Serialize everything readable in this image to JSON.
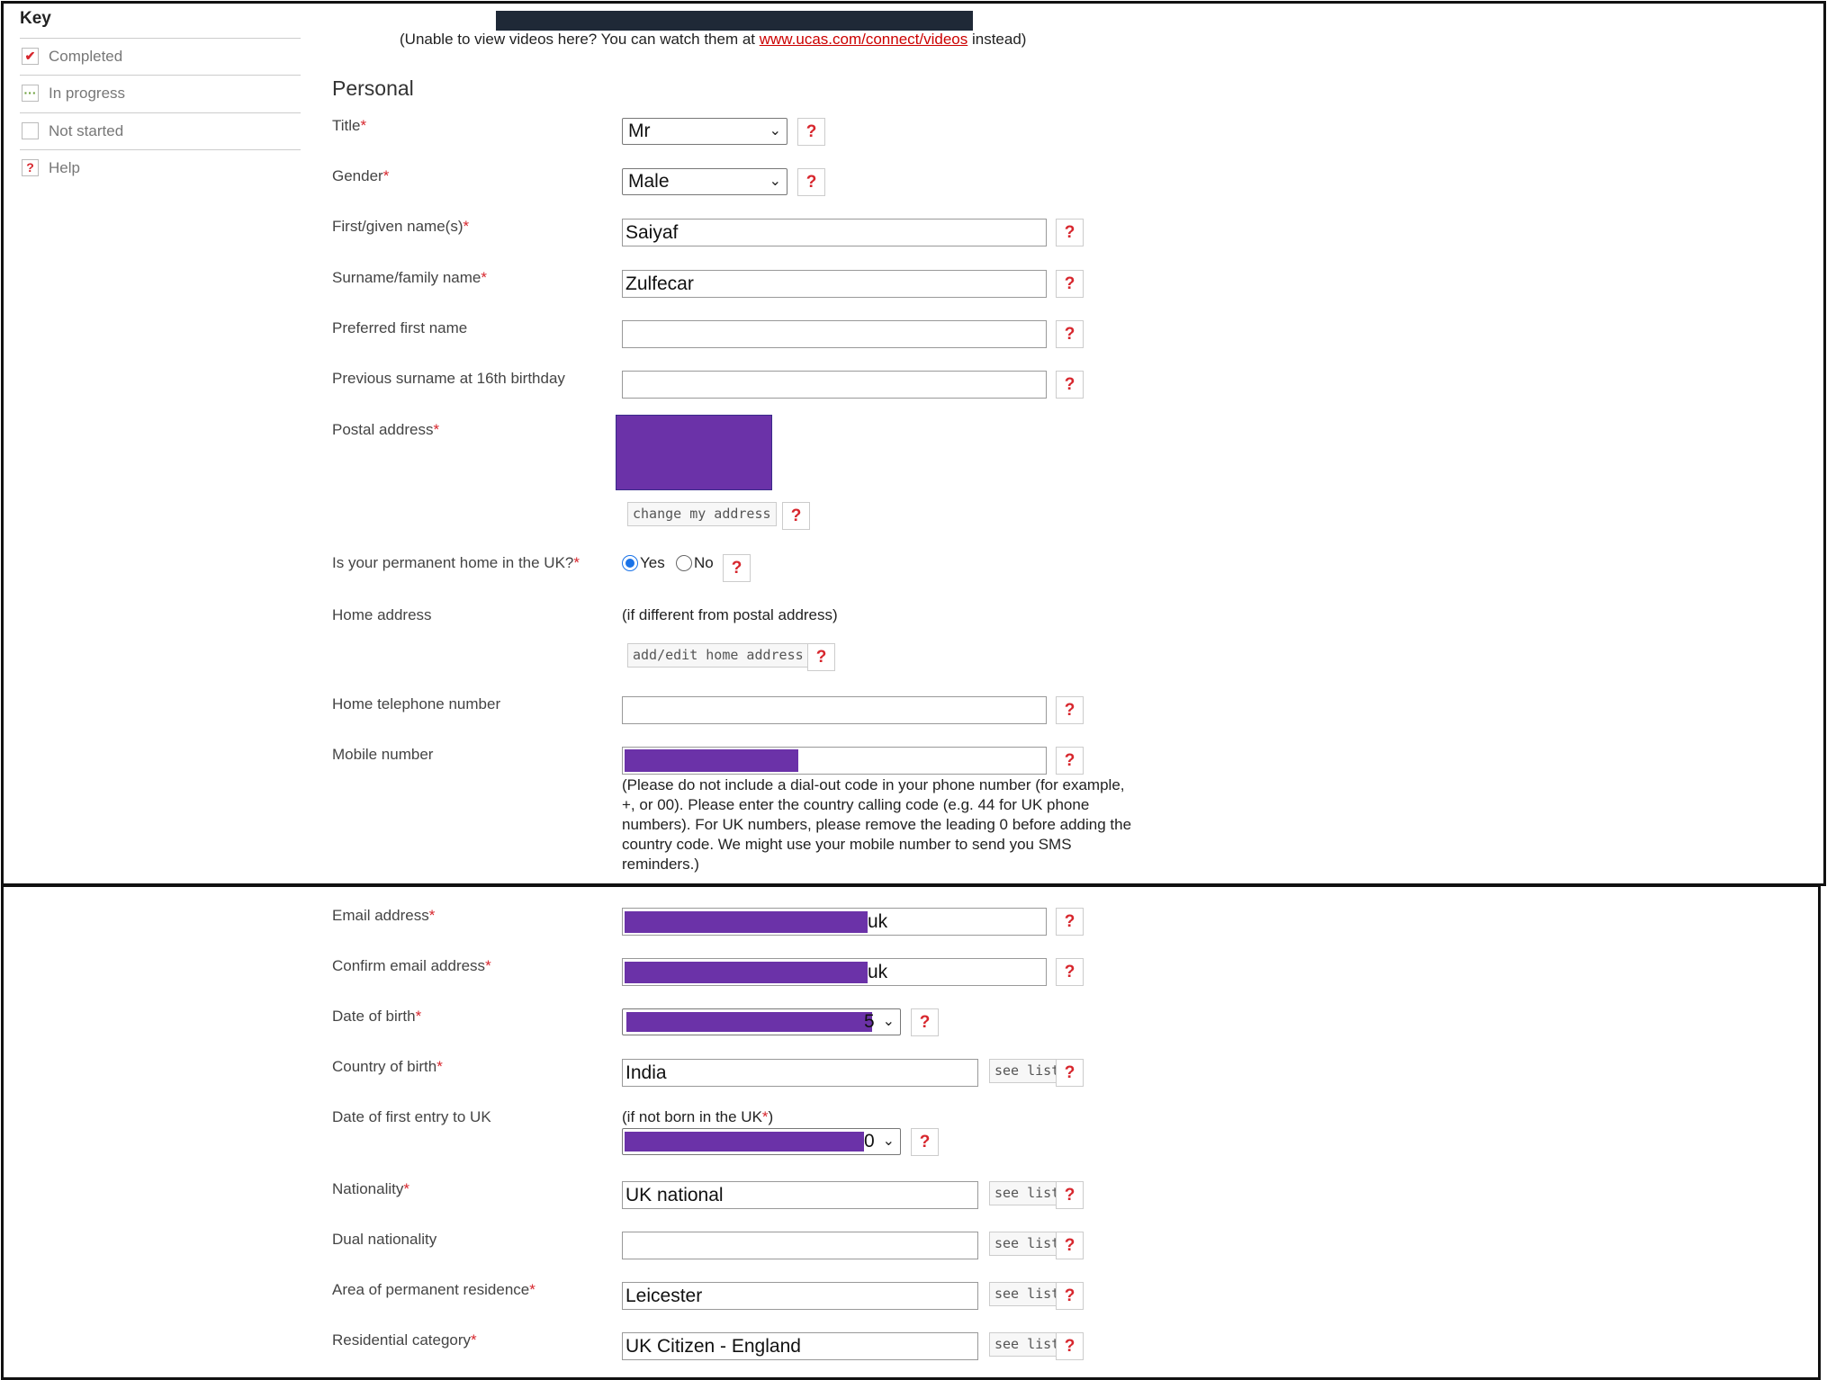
{
  "key": {
    "title": "Key",
    "items": [
      {
        "label": "Completed"
      },
      {
        "label": "In progress"
      },
      {
        "label": "Not started"
      },
      {
        "label": "Help"
      }
    ]
  },
  "video_note": {
    "prefix": "(Unable to view videos here? You can watch them at ",
    "link": "www.ucas.com/connect/videos",
    "suffix": " instead)"
  },
  "section_title": "Personal",
  "required_marker": "*",
  "help_glyph": "?",
  "fields": {
    "title": {
      "label": "Title",
      "value": "Mr"
    },
    "gender": {
      "label": "Gender",
      "value": "Male"
    },
    "first_name": {
      "label": "First/given name(s)",
      "value": "Saiyaf"
    },
    "surname": {
      "label": "Surname/family name",
      "value": "Zulfecar"
    },
    "preferred_first_name": {
      "label": "Preferred first name",
      "value": ""
    },
    "previous_surname": {
      "label": "Previous surname at 16th birthday",
      "value": ""
    },
    "postal_address": {
      "label": "Postal address",
      "button": "change my address"
    },
    "permanent_home": {
      "label": "Is your permanent home in the UK?",
      "yes": "Yes",
      "no": "No",
      "selected": "Yes"
    },
    "home_address": {
      "label": "Home address",
      "note": "(if different from postal address)",
      "button": "add/edit home address"
    },
    "home_telephone": {
      "label": "Home telephone number",
      "value": ""
    },
    "mobile": {
      "label": "Mobile number",
      "note": "(Please do not include a dial-out code in your phone number (for example, +, or 00). Please enter the country calling code (e.g. 44 for UK phone numbers). For UK numbers, please remove the leading 0 before adding the country code. We might use your mobile number to send you SMS reminders.)"
    },
    "email": {
      "label": "Email address",
      "visible_suffix": "uk"
    },
    "confirm_email": {
      "label": "Confirm email address",
      "visible_suffix": "uk"
    },
    "dob": {
      "label": "Date of birth",
      "visible_suffix": "5"
    },
    "country_of_birth": {
      "label": "Country of birth",
      "value": "India",
      "button": "see list"
    },
    "first_entry": {
      "label": "Date of first entry to UK",
      "note_prefix": "(if not born in the UK",
      "note_suffix": ")",
      "visible_suffix": "0"
    },
    "nationality": {
      "label": "Nationality",
      "value": "UK national",
      "button": "see list"
    },
    "dual_nationality": {
      "label": "Dual nationality",
      "value": "",
      "button": "see list"
    },
    "area_residence": {
      "label": "Area of permanent residence",
      "value": "Leicester",
      "button": "see list"
    },
    "residential_category": {
      "label": "Residential category",
      "value": "UK Citizen - England",
      "button": "see list"
    }
  },
  "colors": {
    "required": "#d7262d",
    "redaction": "#6b32a8",
    "link": "#cc0000"
  }
}
